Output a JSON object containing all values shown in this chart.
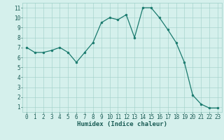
{
  "x": [
    0,
    1,
    2,
    3,
    4,
    5,
    6,
    7,
    8,
    9,
    10,
    11,
    12,
    13,
    14,
    15,
    16,
    17,
    18,
    19,
    20,
    21,
    22,
    23
  ],
  "y": [
    7.0,
    6.5,
    6.5,
    6.7,
    7.0,
    6.5,
    5.5,
    6.5,
    7.5,
    9.5,
    10.0,
    9.8,
    10.3,
    8.0,
    11.0,
    11.0,
    10.0,
    8.8,
    7.5,
    5.5,
    2.2,
    1.3,
    0.9,
    0.9
  ],
  "line_color": "#1a7a6e",
  "marker_color": "#1a7a6e",
  "bg_color": "#d5f0ec",
  "grid_color": "#9ecfc8",
  "xlabel": "Humidex (Indice chaleur)",
  "xlim": [
    -0.5,
    23.5
  ],
  "ylim": [
    0.5,
    11.5
  ],
  "yticks": [
    1,
    2,
    3,
    4,
    5,
    6,
    7,
    8,
    9,
    10,
    11
  ],
  "xticks": [
    0,
    1,
    2,
    3,
    4,
    5,
    6,
    7,
    8,
    9,
    10,
    11,
    12,
    13,
    14,
    15,
    16,
    17,
    18,
    19,
    20,
    21,
    22,
    23
  ],
  "label_fontsize": 6.5,
  "tick_fontsize": 5.5
}
